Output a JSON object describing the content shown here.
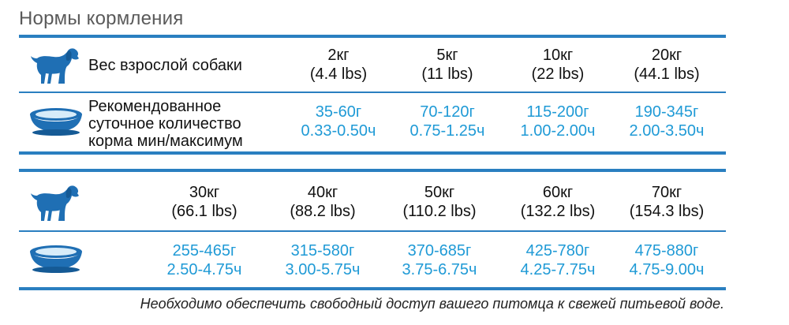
{
  "title": "Нормы кормления",
  "icons": {
    "dog": "dog-silhouette-icon",
    "bowl": "food-bowl-icon",
    "color": "#1f6fb4"
  },
  "colors": {
    "accent": "#2a7fc0",
    "feed_text": "#1f9ad6"
  },
  "table1": {
    "weight_label": "Вес взрослой собаки",
    "feed_label": [
      "Рекомендованное",
      "суточное количество",
      "корма мин/максимум"
    ],
    "columns": [
      {
        "kg": "2кг",
        "lbs": "(4.4 lbs)",
        "grams": "35-60г",
        "cups": "0.33-0.50ч"
      },
      {
        "kg": "5кг",
        "lbs": "(11 lbs)",
        "grams": "70-120г",
        "cups": "0.75-1.25ч"
      },
      {
        "kg": "10кг",
        "lbs": "(22 lbs)",
        "grams": "115-200г",
        "cups": "1.00-2.00ч"
      },
      {
        "kg": "20кг",
        "lbs": "(44.1 lbs)",
        "grams": "190-345г",
        "cups": "2.00-3.50ч"
      }
    ]
  },
  "table2": {
    "columns": [
      {
        "kg": "30кг",
        "lbs": "(66.1 lbs)",
        "grams": "255-465г",
        "cups": "2.50-4.75ч"
      },
      {
        "kg": "40кг",
        "lbs": "(88.2 lbs)",
        "grams": "315-580г",
        "cups": "3.00-5.75ч"
      },
      {
        "kg": "50кг",
        "lbs": "(110.2 lbs)",
        "grams": "370-685г",
        "cups": "3.75-6.75ч"
      },
      {
        "kg": "60кг",
        "lbs": "(132.2 lbs)",
        "grams": "425-780г",
        "cups": "4.25-7.75ч"
      },
      {
        "kg": "70кг",
        "lbs": "(154.3 lbs)",
        "grams": "475-880г",
        "cups": "4.75-9.00ч"
      }
    ]
  },
  "note": "Необходимо обеспечить свободный доступ  вашего питомца к свежей питьевой воде."
}
